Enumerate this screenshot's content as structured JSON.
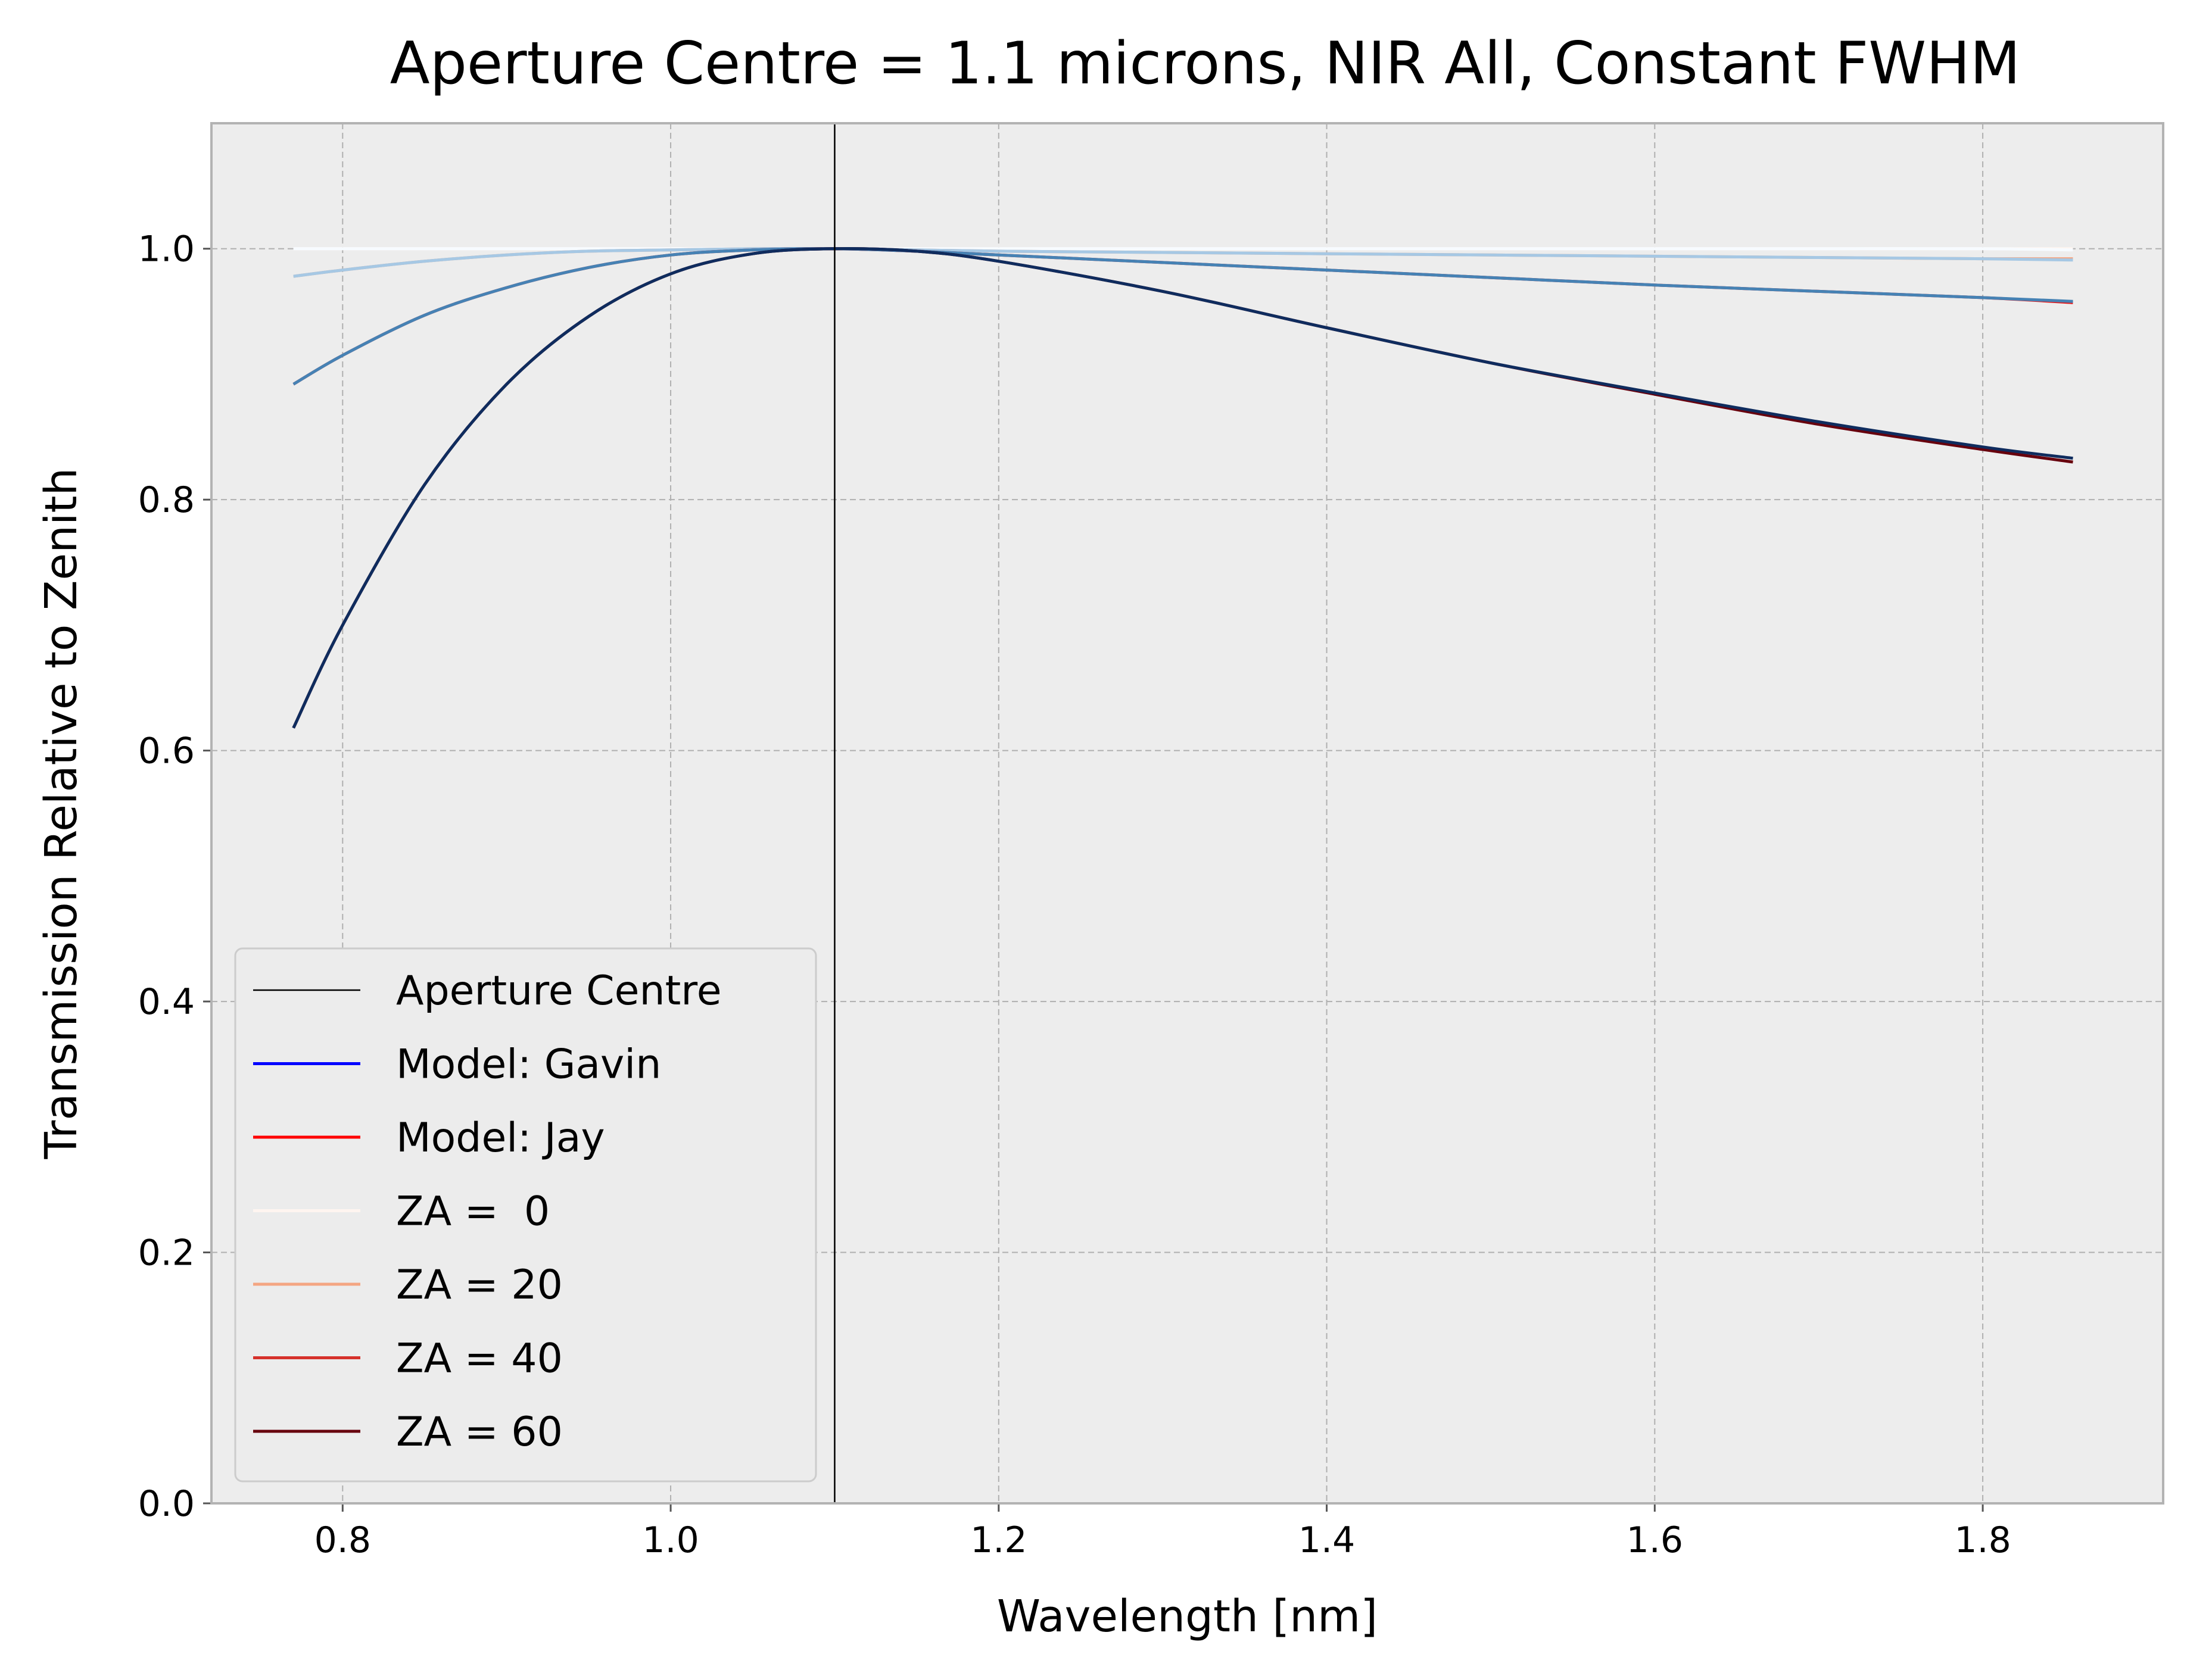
{
  "chart_data": {
    "type": "line",
    "title": "Aperture Centre = 1.1 microns, NIR All, Constant FWHM",
    "xlabel": "Wavelength [nm]",
    "ylabel": "Transmission Relative to Zenith",
    "xlim": [
      0.72,
      1.91
    ],
    "ylim": [
      0.0,
      1.1
    ],
    "xticks": [
      "0.8",
      "1.0",
      "1.2",
      "1.4",
      "1.6",
      "1.8"
    ],
    "yticks": [
      "0.0",
      "0.2",
      "0.4",
      "0.6",
      "0.8",
      "1.0"
    ],
    "grid": true,
    "legend_position": "lower-left",
    "background": "#ededed",
    "aperture_centre": 1.1,
    "legend": [
      {
        "label": "Aperture Centre",
        "color": "#000000"
      },
      {
        "label": "Model: Gavin",
        "color": "#0000ff"
      },
      {
        "label": "Model: Jay",
        "color": "#ff0000"
      },
      {
        "label": "ZA =  0",
        "color": "#fff5f0"
      },
      {
        "label": "ZA = 20",
        "color": "#f4a582"
      },
      {
        "label": "ZA = 40",
        "color": "#d6312b"
      },
      {
        "label": "ZA = 60",
        "color": "#67000d"
      }
    ],
    "x": [
      0.77,
      0.8,
      0.85,
      0.9,
      0.95,
      1.0,
      1.05,
      1.1,
      1.15,
      1.2,
      1.3,
      1.4,
      1.5,
      1.6,
      1.7,
      1.8,
      1.855
    ],
    "series": [
      {
        "model": "Jay",
        "za": 0,
        "color": "#fff5f0",
        "values": [
          1.0,
          1.0,
          1.0,
          1.0,
          1.0,
          1.0,
          1.0,
          1.0,
          1.0,
          1.0,
          1.0,
          1.0,
          1.0,
          1.0,
          1.0,
          1.0,
          1.0
        ]
      },
      {
        "model": "Gavin",
        "za": 0,
        "color": "#f7fbff",
        "values": [
          1.0,
          1.0,
          1.0,
          1.0,
          1.0,
          1.0,
          1.0,
          1.0,
          1.0,
          1.0,
          1.0,
          1.0,
          1.0,
          1.0,
          1.0,
          1.0,
          0.999
        ]
      },
      {
        "model": "Jay",
        "za": 20,
        "color": "#f4a582",
        "values": [
          0.978,
          0.983,
          0.99,
          0.995,
          0.998,
          0.999,
          1.0,
          1.0,
          0.999,
          0.998,
          0.997,
          0.996,
          0.995,
          0.994,
          0.993,
          0.992,
          0.992
        ]
      },
      {
        "model": "Gavin",
        "za": 20,
        "color": "#a6c8e4",
        "values": [
          0.978,
          0.983,
          0.99,
          0.995,
          0.998,
          0.999,
          1.0,
          1.0,
          0.999,
          0.998,
          0.997,
          0.996,
          0.995,
          0.994,
          0.993,
          0.992,
          0.991
        ]
      },
      {
        "model": "Jay",
        "za": 40,
        "color": "#e41a1c",
        "values": [
          0.892,
          0.915,
          0.947,
          0.969,
          0.985,
          0.995,
          0.999,
          1.0,
          0.998,
          0.995,
          0.989,
          0.983,
          0.977,
          0.971,
          0.966,
          0.961,
          0.957
        ]
      },
      {
        "model": "Gavin",
        "za": 40,
        "color": "#4682b4",
        "values": [
          0.892,
          0.915,
          0.947,
          0.969,
          0.985,
          0.995,
          0.999,
          1.0,
          0.998,
          0.995,
          0.989,
          0.983,
          0.977,
          0.971,
          0.966,
          0.961,
          0.958
        ]
      },
      {
        "model": "Jay",
        "za": 60,
        "color": "#67000d",
        "values": [
          0.618,
          0.7,
          0.812,
          0.892,
          0.946,
          0.98,
          0.996,
          1.0,
          0.998,
          0.99,
          0.966,
          0.937,
          0.909,
          0.884,
          0.86,
          0.84,
          0.83
        ]
      },
      {
        "model": "Gavin",
        "za": 60,
        "color": "#0f2c5e",
        "values": [
          0.618,
          0.7,
          0.812,
          0.892,
          0.946,
          0.98,
          0.996,
          1.0,
          0.998,
          0.99,
          0.966,
          0.937,
          0.909,
          0.885,
          0.862,
          0.842,
          0.833
        ]
      }
    ]
  }
}
